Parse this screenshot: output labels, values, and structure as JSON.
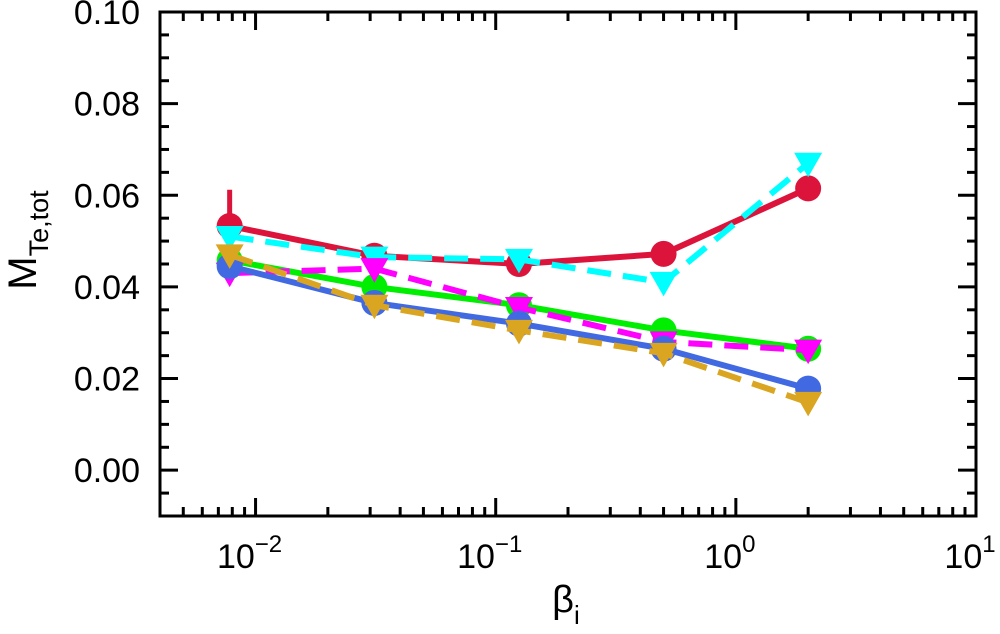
{
  "chart_data": {
    "type": "line",
    "xlabel": "β",
    "xlabel_sub": "i",
    "ylabel": "M",
    "ylabel_sub": "Te,tot",
    "x_scale": "log",
    "xlim": [
      0.004,
      10
    ],
    "ylim": [
      -0.01,
      0.1
    ],
    "y_ticks": [
      0.0,
      0.02,
      0.04,
      0.06,
      0.08,
      0.1
    ],
    "y_tick_labels": [
      "0.00",
      "0.02",
      "0.04",
      "0.06",
      "0.08",
      "0.10"
    ],
    "x_ticks": [
      0.01,
      0.1,
      1,
      10
    ],
    "x_tick_bases": [
      "10",
      "10",
      "10",
      "10"
    ],
    "x_tick_exps": [
      "−2",
      "−1",
      "0",
      "1"
    ],
    "grid": false,
    "x": [
      0.0078,
      0.03125,
      0.125,
      0.5,
      2.0
    ],
    "series": [
      {
        "color": "#dc143c",
        "marker": "circle",
        "dashed": false,
        "values": [
          0.0533,
          0.0468,
          0.045,
          0.0472,
          0.0615
        ],
        "error_bar": {
          "index": 0,
          "low": 0.049,
          "high": 0.0612
        }
      },
      {
        "color": "#00ffff",
        "marker": "triangle-down",
        "dashed": true,
        "values": [
          0.051,
          0.0465,
          0.046,
          0.041,
          0.067
        ]
      },
      {
        "color": "#00ee00",
        "marker": "circle",
        "dashed": false,
        "values": [
          0.0458,
          0.04,
          0.036,
          0.0305,
          0.0265
        ]
      },
      {
        "color": "#ff00ff",
        "marker": "triangle-down",
        "dashed": true,
        "values": [
          0.043,
          0.044,
          0.0355,
          0.028,
          0.0262
        ]
      },
      {
        "color": "#4169e1",
        "marker": "circle",
        "dashed": false,
        "values": [
          0.0445,
          0.0365,
          0.032,
          0.0265,
          0.0178
        ]
      },
      {
        "color": "#daa520",
        "marker": "triangle-down",
        "dashed": true,
        "values": [
          0.047,
          0.036,
          0.0305,
          0.0255,
          0.0148
        ]
      }
    ]
  }
}
